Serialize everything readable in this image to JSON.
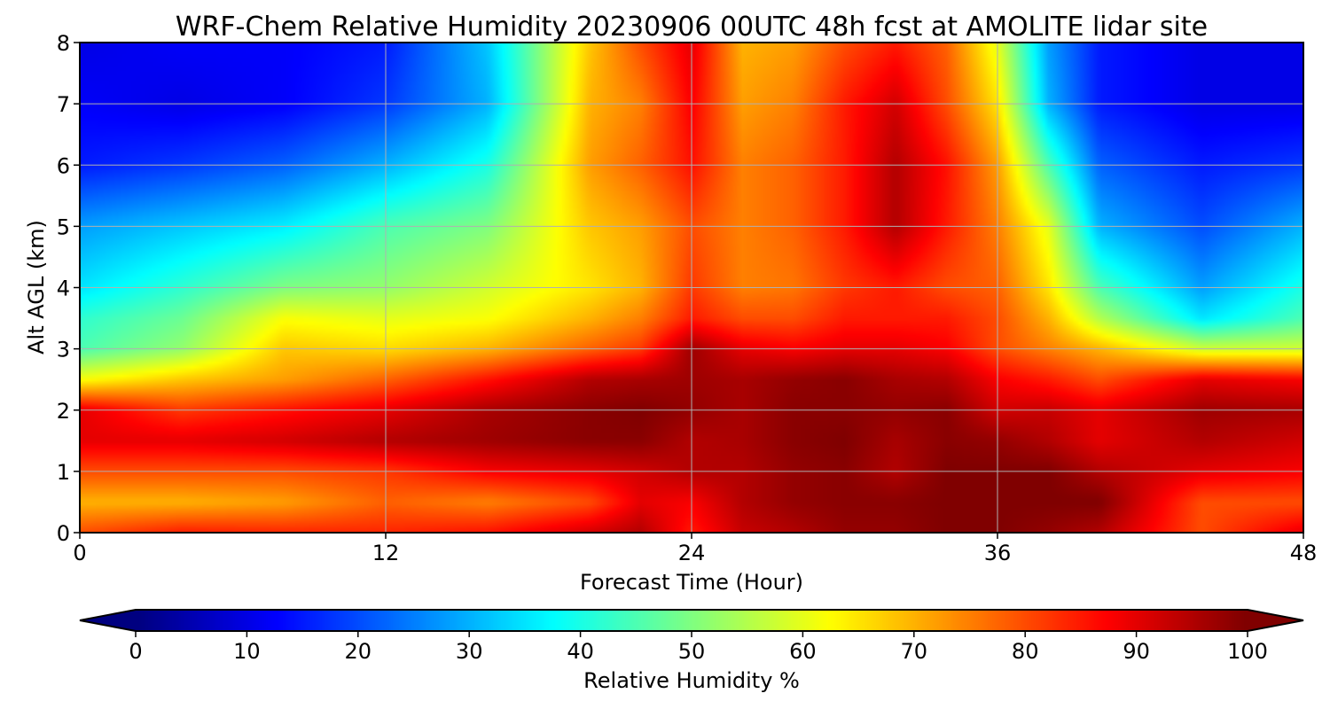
{
  "chart_data": {
    "type": "heatmap",
    "title": "WRF-Chem Relative Humidity 20230906 00UTC 48h fcst at AMOLITE lidar site",
    "xlabel": "Forecast Time (Hour)",
    "ylabel": "Alt AGL (km)",
    "xlim": [
      0,
      48
    ],
    "ylim": [
      0,
      8
    ],
    "xticks": [
      "0",
      "12",
      "24",
      "36",
      "48"
    ],
    "yticks": [
      "0",
      "1",
      "2",
      "3",
      "4",
      "5",
      "6",
      "7",
      "8"
    ],
    "grid": true,
    "colorbar": {
      "label": "Relative Humidity %",
      "range": [
        0,
        100
      ],
      "ticks": [
        "0",
        "10",
        "20",
        "30",
        "40",
        "50",
        "60",
        "70",
        "80",
        "90",
        "100"
      ],
      "colormap": "jet",
      "extend": "both"
    },
    "x": [
      0,
      4,
      8,
      12,
      16,
      20,
      22,
      24,
      26,
      28,
      30,
      32,
      34,
      36,
      38,
      40,
      44,
      48
    ],
    "y": [
      0,
      0.5,
      1,
      1.5,
      2,
      2.5,
      3,
      3.5,
      4,
      5,
      6,
      7,
      8
    ],
    "z": [
      [
        80,
        85,
        84,
        84,
        86,
        92,
        95,
        85,
        93,
        95,
        98,
        98,
        100,
        100,
        98,
        95,
        80,
        90
      ],
      [
        70,
        70,
        72,
        78,
        75,
        80,
        90,
        88,
        95,
        98,
        99,
        99,
        100,
        100,
        100,
        100,
        80,
        80
      ],
      [
        80,
        80,
        80,
        82,
        88,
        90,
        92,
        95,
        95,
        98,
        99,
        95,
        100,
        100,
        100,
        95,
        90,
        88
      ],
      [
        90,
        90,
        92,
        95,
        97,
        99,
        99,
        95,
        96,
        99,
        100,
        96,
        99,
        98,
        95,
        90,
        95,
        92
      ],
      [
        90,
        82,
        86,
        90,
        96,
        99,
        100,
        98,
        96,
        99,
        99,
        98,
        99,
        92,
        93,
        90,
        97,
        96
      ],
      [
        62,
        68,
        72,
        78,
        86,
        95,
        96,
        97,
        96,
        98,
        99,
        96,
        95,
        88,
        85,
        80,
        90,
        88
      ],
      [
        45,
        52,
        68,
        66,
        70,
        78,
        82,
        97,
        90,
        88,
        90,
        90,
        88,
        80,
        75,
        70,
        58,
        58
      ],
      [
        42,
        48,
        62,
        60,
        62,
        70,
        75,
        85,
        80,
        80,
        85,
        85,
        85,
        80,
        70,
        55,
        35,
        45
      ],
      [
        35,
        42,
        50,
        52,
        58,
        65,
        70,
        82,
        75,
        76,
        82,
        85,
        80,
        78,
        65,
        45,
        28,
        40
      ],
      [
        28,
        32,
        36,
        45,
        50,
        68,
        72,
        80,
        75,
        78,
        85,
        95,
        85,
        75,
        60,
        30,
        20,
        30
      ],
      [
        15,
        18,
        22,
        30,
        40,
        72,
        78,
        86,
        75,
        78,
        85,
        95,
        86,
        72,
        45,
        22,
        15,
        18
      ],
      [
        12,
        10,
        12,
        18,
        30,
        70,
        75,
        88,
        72,
        75,
        85,
        92,
        80,
        65,
        30,
        15,
        10,
        10
      ],
      [
        10,
        12,
        12,
        15,
        32,
        68,
        80,
        90,
        70,
        72,
        80,
        85,
        78,
        60,
        28,
        15,
        10,
        10
      ]
    ]
  }
}
